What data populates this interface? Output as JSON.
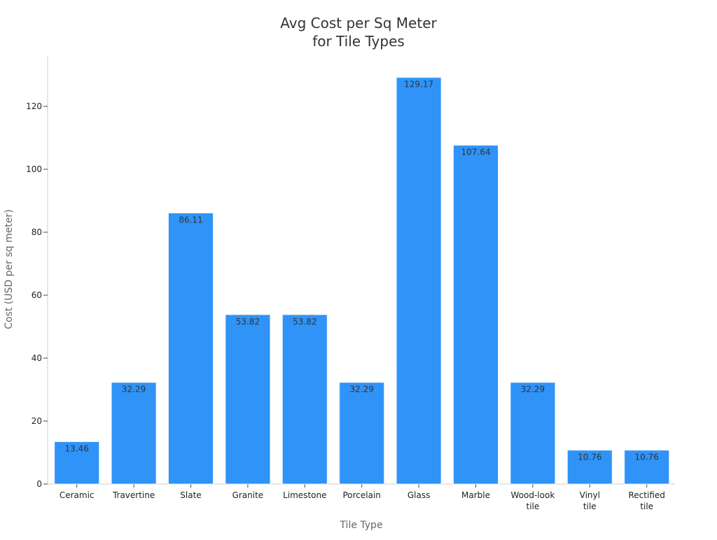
{
  "chart_data": {
    "type": "bar",
    "title_lines": [
      "Avg Cost per Sq Meter",
      "for Tile Types"
    ],
    "xlabel": "Tile Type",
    "ylabel": "Cost (USD per sq meter)",
    "categories": [
      [
        "Ceramic"
      ],
      [
        "Travertine"
      ],
      [
        "Slate"
      ],
      [
        "Granite"
      ],
      [
        "Limestone"
      ],
      [
        "Porcelain"
      ],
      [
        "Glass"
      ],
      [
        "Marble"
      ],
      [
        "Wood-look",
        "tile"
      ],
      [
        "Vinyl",
        "tile"
      ],
      [
        "Rectified",
        "tile"
      ]
    ],
    "values": [
      13.46,
      32.29,
      86.11,
      53.82,
      53.82,
      32.29,
      129.17,
      107.64,
      32.29,
      10.76,
      10.76
    ],
    "ylim": [
      0,
      133
    ],
    "yticks": [
      0,
      20,
      40,
      60,
      80,
      100,
      120
    ],
    "grid": false,
    "bar_color": "#2f93f8",
    "bar_edge_color": "#e8f2fd"
  }
}
